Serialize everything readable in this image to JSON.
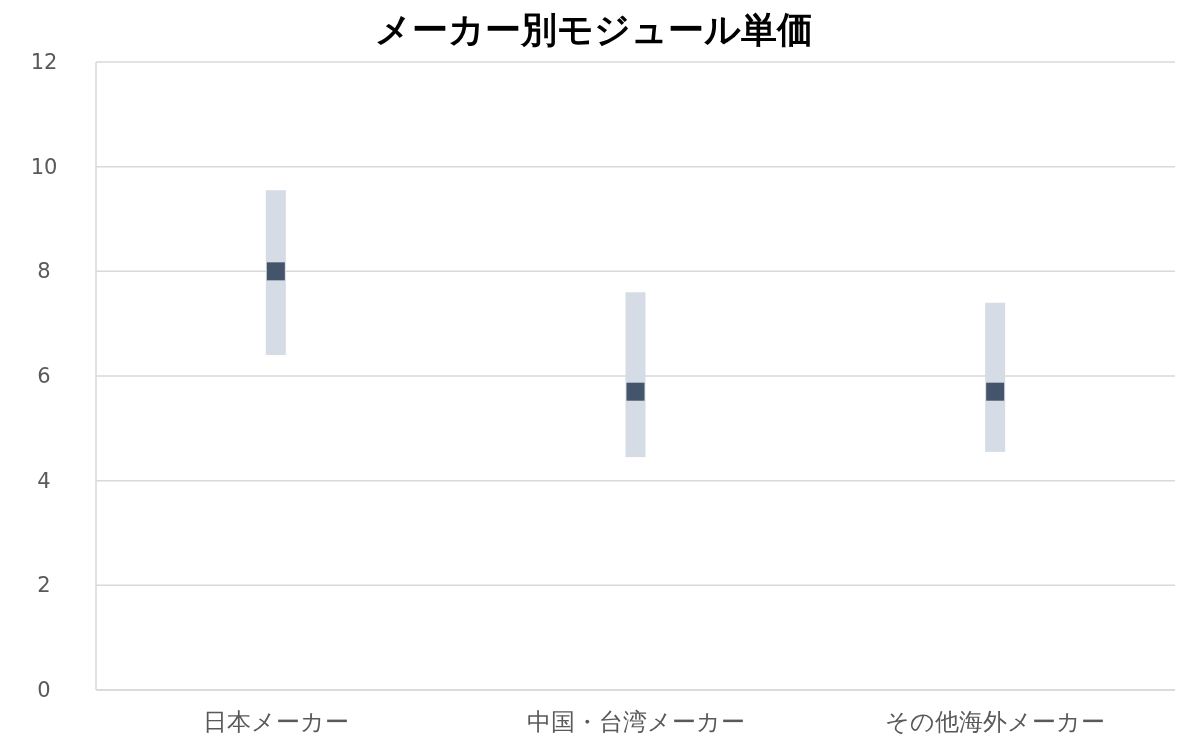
{
  "chart_data": {
    "type": "bar",
    "title": "メーカー別モジュール単価",
    "categories": [
      "日本メーカー",
      "中国・台湾メーカー",
      "その他海外メーカー"
    ],
    "series": [
      {
        "type": "bar",
        "color": "#d6dce5",
        "base": [
          6.4,
          4.45,
          4.55
        ],
        "values": [
          3.15,
          3.15,
          2.85
        ]
      },
      {
        "type": "scatter",
        "color": "#44546a",
        "marker": "square",
        "values": [
          8.0,
          5.7,
          5.7
        ]
      }
    ],
    "ylim": [
      0,
      12
    ],
    "yticks": [
      0,
      2,
      4,
      6,
      8,
      10,
      12
    ],
    "grid": "y"
  }
}
